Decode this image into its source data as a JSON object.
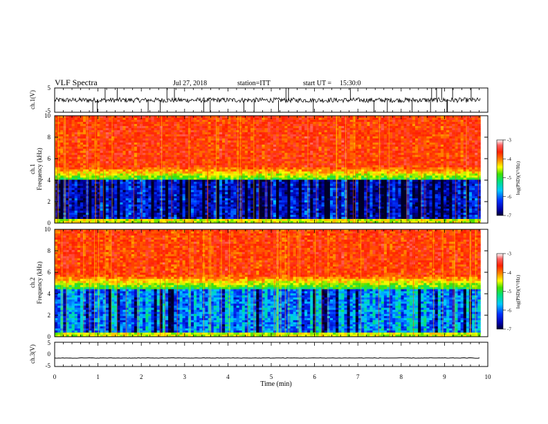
{
  "header": {
    "title": "VLF Spectra",
    "date": "Jul 27, 2018",
    "station": "station=ITT",
    "start_prefix": "start UT =",
    "start_time": "15:30:0"
  },
  "chart_data": [
    {
      "type": "line",
      "name": "ch1-waveform",
      "ylabel": "ch.1(V)",
      "ylim": [
        -5,
        5
      ],
      "yticks": [
        "5",
        "-5"
      ],
      "xlim": [
        0,
        10
      ],
      "x_end": 9.83,
      "baseline": 0.0,
      "noise_amplitude": 1.0,
      "spikes_to": [
        5,
        -5
      ],
      "color": "#000000"
    },
    {
      "type": "heatmap",
      "name": "ch1-spectrogram",
      "ylabel_top": "ch.1",
      "ylabel": "Frequency (kHz)",
      "ylim": [
        0,
        10
      ],
      "yticks": [
        "0",
        "2",
        "4",
        "6",
        "8",
        "10"
      ],
      "xlim": [
        0,
        10
      ],
      "x_end": 9.83,
      "cutoff_khz": 4.0,
      "colorbar": {
        "label": "log(PSD)(V²/Hz)",
        "range": [
          -7,
          -3
        ],
        "ticks": [
          "-3",
          "-4",
          "-5",
          "-6",
          "-7"
        ]
      }
    },
    {
      "type": "heatmap",
      "name": "ch2-spectrogram",
      "ylabel_top": "ch.2",
      "ylabel": "Frequency (kHz)",
      "ylim": [
        0,
        10
      ],
      "yticks": [
        "0",
        "2",
        "4",
        "6",
        "8",
        "10"
      ],
      "xlim": [
        0,
        10
      ],
      "x_end": 9.83,
      "cutoff_khz": 4.5,
      "colorbar": {
        "label": "log(PSD)(V²/Hz)",
        "range": [
          -7,
          -3
        ],
        "ticks": [
          "-3",
          "-4",
          "-5",
          "-6",
          "-7"
        ]
      }
    },
    {
      "type": "line",
      "name": "ch3-waveform",
      "ylabel": "ch.3(V)",
      "ylim": [
        -5,
        5
      ],
      "yticks": [
        "5",
        "0",
        "-5"
      ],
      "xlim": [
        0,
        10
      ],
      "x_end": 9.83,
      "baseline": -1.5,
      "noise_amplitude": 0.1,
      "color": "#000000"
    }
  ],
  "x_axis": {
    "label": "Time (min)",
    "ticks": [
      "0",
      "1",
      "2",
      "3",
      "4",
      "5",
      "6",
      "7",
      "8",
      "9",
      "10"
    ]
  }
}
